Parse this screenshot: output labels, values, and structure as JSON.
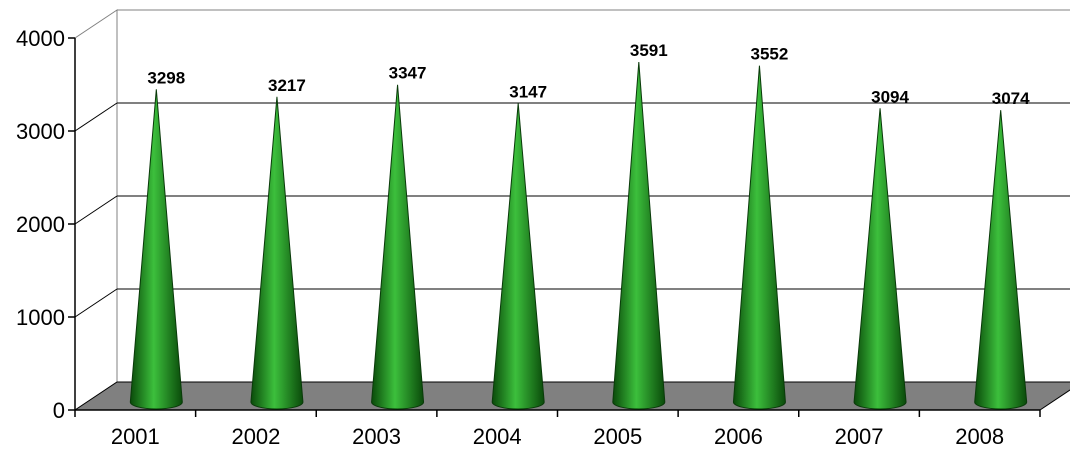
{
  "chart_data": {
    "type": "bar",
    "bar_shape": "cone",
    "categories": [
      "2001",
      "2002",
      "2003",
      "2004",
      "2005",
      "2006",
      "2007",
      "2008"
    ],
    "values": [
      3298,
      3217,
      3347,
      3147,
      3591,
      3552,
      3094,
      3074
    ],
    "y_ticks": [
      "0",
      "1000",
      "2000",
      "3000",
      "4000"
    ],
    "ylim": [
      0,
      4000
    ],
    "title": "",
    "xlabel": "",
    "ylabel": "",
    "grid": true,
    "legend": "none",
    "colors": {
      "cone_dark": "#0a4a0a",
      "cone_mid": "#1f8f1f",
      "cone_light": "#3cbf3c",
      "floor": "#808080",
      "gridline": "#000000"
    }
  }
}
